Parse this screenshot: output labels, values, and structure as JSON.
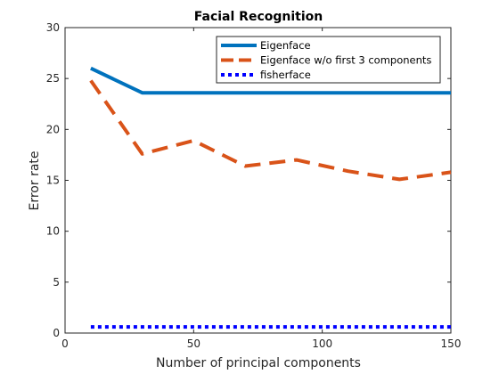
{
  "chart_data": {
    "type": "line",
    "title": "Facial Recognition",
    "xlabel": "Number of principal components",
    "ylabel": "Error rate",
    "xlim": [
      0,
      150
    ],
    "ylim": [
      0,
      30
    ],
    "xticks": [
      0,
      50,
      100,
      150
    ],
    "yticks": [
      0,
      5,
      10,
      15,
      20,
      25,
      30
    ],
    "grid": false,
    "legend_position": "top-right",
    "series": [
      {
        "name": "Eigenface",
        "color": "#0072BD",
        "style": "solid",
        "x": [
          10,
          30,
          50,
          70,
          90,
          110,
          130,
          150
        ],
        "y": [
          26.0,
          23.6,
          23.6,
          23.6,
          23.6,
          23.6,
          23.6,
          23.6
        ]
      },
      {
        "name": "Eigenface w/o first 3 components",
        "color": "#D95319",
        "style": "dashed",
        "x": [
          10,
          30,
          50,
          70,
          90,
          110,
          130,
          150
        ],
        "y": [
          24.8,
          17.6,
          18.9,
          16.4,
          17.0,
          15.9,
          15.1,
          15.8
        ]
      },
      {
        "name": "fisherface",
        "color": "#0000FF",
        "style": "dotted",
        "x": [
          10,
          30,
          50,
          70,
          90,
          110,
          130,
          150
        ],
        "y": [
          0.6,
          0.6,
          0.6,
          0.6,
          0.6,
          0.6,
          0.6,
          0.6
        ]
      }
    ]
  }
}
